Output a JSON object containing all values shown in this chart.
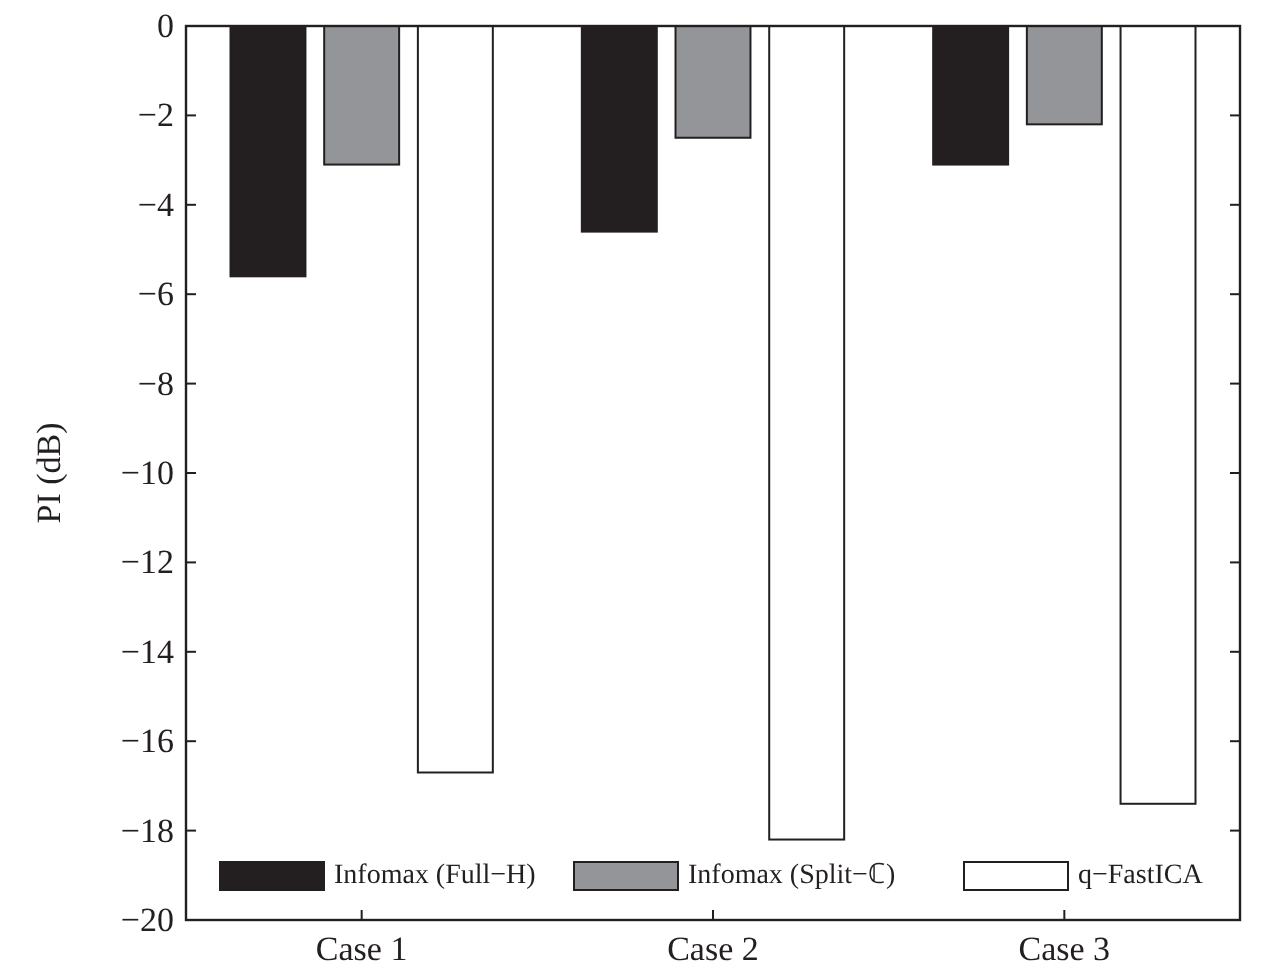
{
  "chart_data": {
    "type": "bar",
    "ylabel": "PI (dB)",
    "categories": [
      "Case 1",
      "Case 2",
      "Case 3"
    ],
    "series": [
      {
        "name": "Infomax (Full−H)",
        "color": "#231f20",
        "values": [
          -5.6,
          -4.6,
          -3.1
        ]
      },
      {
        "name": "Infomax (Split−ℂ)",
        "color": "#939598",
        "values": [
          -3.1,
          -2.5,
          -2.2
        ]
      },
      {
        "name": "q−FastICA",
        "color": "#ffffff",
        "values": [
          -16.7,
          -18.2,
          -17.4
        ]
      }
    ],
    "ylim": [
      -20,
      0
    ],
    "yticks": [
      {
        "value": -20,
        "label": "−20"
      },
      {
        "value": -18,
        "label": "−18"
      },
      {
        "value": -16,
        "label": "−16"
      },
      {
        "value": -14,
        "label": "−14"
      },
      {
        "value": -12,
        "label": "−12"
      },
      {
        "value": -10,
        "label": "−10"
      },
      {
        "value": -8,
        "label": "−8"
      },
      {
        "value": -6,
        "label": "−6"
      },
      {
        "value": -4,
        "label": "−4"
      },
      {
        "value": -2,
        "label": "−2"
      },
      0
    ],
    "grid": false,
    "legend": "bottom"
  }
}
